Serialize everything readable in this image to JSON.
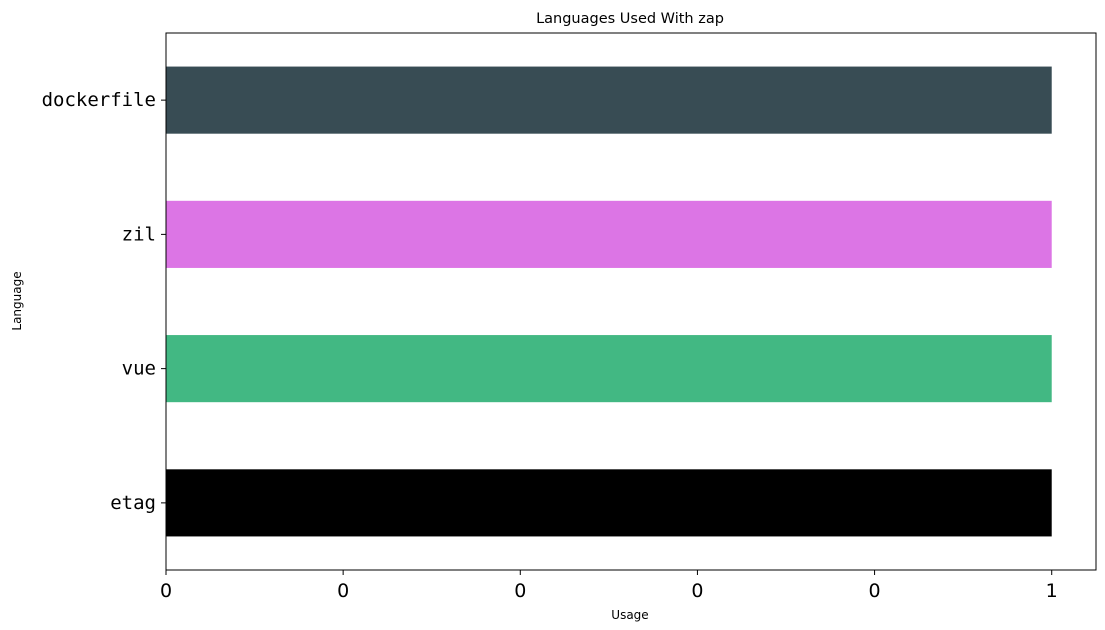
{
  "chart_data": {
    "type": "bar",
    "orientation": "horizontal",
    "title": "Languages Used With zap",
    "xlabel": "Usage",
    "ylabel": "Language",
    "categories": [
      "dockerfile",
      "zil",
      "vue",
      "etag"
    ],
    "values": [
      1,
      1,
      1,
      1
    ],
    "colors": [
      "#384C54",
      "#DC75E5",
      "#42B883",
      "#000000"
    ],
    "xlim": [
      0,
      1.05
    ],
    "xticks": [
      0,
      0.2,
      0.4,
      0.6,
      0.8,
      1.0
    ],
    "xtick_labels": [
      "0",
      "0",
      "0",
      "0",
      "0",
      "1"
    ],
    "grid": false,
    "legend": "none"
  }
}
